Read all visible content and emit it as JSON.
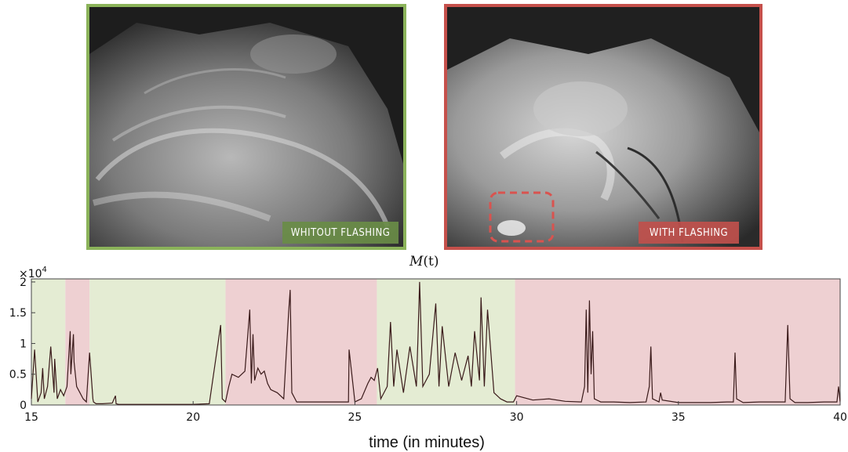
{
  "photos": {
    "left_caption": "WHITOUT FLASHING",
    "right_caption": "WITH FLASHING",
    "left_border_color": "#8bb35a",
    "right_border_color": "#c5504b"
  },
  "chart_data": {
    "type": "line",
    "title_symbol": "M",
    "title_arg": "(t)",
    "xlabel": "time (in minutes)",
    "exponent_label": "×10",
    "exponent_power": "4",
    "xlim": [
      15,
      40
    ],
    "ylim": [
      0,
      2.05
    ],
    "x_ticks": [
      15,
      20,
      25,
      30,
      35,
      40
    ],
    "x_tick_labels": [
      "15",
      "20",
      "25",
      "30",
      "35",
      "40"
    ],
    "y_ticks": [
      0,
      0.5,
      1,
      1.5,
      2
    ],
    "y_tick_labels": [
      "0",
      "0.5",
      "1",
      "1.5",
      "2"
    ],
    "y_units": "x10^4",
    "colors": {
      "without_flashing": "#e4ecd3",
      "with_flashing": "#eed0d2",
      "line": "#3a1a1a",
      "axis": "#444444"
    },
    "shaded_regions": [
      {
        "start": 15.0,
        "end": 16.05,
        "state": "without_flashing"
      },
      {
        "start": 16.05,
        "end": 16.8,
        "state": "with_flashing"
      },
      {
        "start": 16.8,
        "end": 21.0,
        "state": "without_flashing"
      },
      {
        "start": 21.0,
        "end": 25.68,
        "state": "with_flashing"
      },
      {
        "start": 25.68,
        "end": 29.95,
        "state": "without_flashing"
      },
      {
        "start": 29.95,
        "end": 40.0,
        "state": "with_flashing"
      }
    ],
    "series": [
      {
        "x": [
          15.0,
          15.1,
          15.2,
          15.3,
          15.35,
          15.4,
          15.5,
          15.6,
          15.7,
          15.72,
          15.8,
          15.9,
          16.0,
          16.1,
          16.2,
          16.22,
          16.3,
          16.32,
          16.4,
          16.5,
          16.6,
          16.7,
          16.8,
          16.9,
          16.92,
          17.0,
          17.2,
          17.5,
          17.6,
          17.62,
          17.7,
          18.0,
          18.5,
          19.0,
          19.5,
          20.0,
          20.5,
          20.85,
          20.9,
          21.0,
          21.1,
          21.2,
          21.4,
          21.6,
          21.75,
          21.8,
          21.85,
          21.9,
          22.0,
          22.1,
          22.2,
          22.3,
          22.4,
          22.6,
          22.8,
          22.95,
          23.0,
          23.05,
          23.2,
          23.5,
          24.0,
          24.5,
          24.8,
          24.82,
          25.0,
          25.2,
          25.4,
          25.5,
          25.6,
          25.7,
          25.8,
          26.0,
          26.1,
          26.2,
          26.3,
          26.5,
          26.7,
          26.9,
          26.95,
          27.0,
          27.1,
          27.3,
          27.5,
          27.6,
          27.7,
          27.9,
          28.1,
          28.3,
          28.5,
          28.6,
          28.7,
          28.85,
          28.9,
          29.0,
          29.1,
          29.3,
          29.5,
          29.7,
          29.9,
          30.0,
          30.5,
          31.0,
          31.5,
          32.0,
          32.1,
          32.15,
          32.2,
          32.25,
          32.3,
          32.35,
          32.4,
          32.6,
          33.0,
          33.5,
          34.0,
          34.1,
          34.15,
          34.2,
          34.4,
          34.45,
          34.5,
          35.0,
          35.5,
          36.0,
          36.5,
          36.7,
          36.75,
          36.8,
          37.0,
          37.5,
          38.0,
          38.3,
          38.38,
          38.45,
          38.6,
          39.0,
          39.5,
          39.9,
          39.95,
          40.0
        ],
        "values": [
          0.1,
          0.9,
          0.05,
          0.2,
          0.6,
          0.1,
          0.3,
          0.95,
          0.2,
          0.75,
          0.1,
          0.25,
          0.15,
          0.3,
          1.2,
          0.5,
          1.15,
          0.7,
          0.3,
          0.2,
          0.1,
          0.05,
          0.85,
          0.1,
          0.05,
          0.02,
          0.02,
          0.03,
          0.15,
          0.02,
          0.01,
          0.01,
          0.01,
          0.01,
          0.01,
          0.01,
          0.02,
          1.3,
          0.1,
          0.05,
          0.3,
          0.5,
          0.45,
          0.55,
          1.55,
          0.35,
          1.15,
          0.4,
          0.6,
          0.5,
          0.55,
          0.35,
          0.25,
          0.2,
          0.1,
          1.5,
          1.87,
          0.2,
          0.05,
          0.05,
          0.05,
          0.05,
          0.05,
          0.9,
          0.05,
          0.1,
          0.35,
          0.45,
          0.4,
          0.6,
          0.1,
          0.3,
          1.35,
          0.3,
          0.9,
          0.2,
          0.95,
          0.3,
          1.08,
          2.0,
          0.3,
          0.5,
          1.65,
          0.3,
          1.28,
          0.3,
          0.85,
          0.4,
          0.8,
          0.3,
          1.2,
          0.4,
          1.75,
          0.3,
          1.55,
          0.2,
          0.1,
          0.05,
          0.05,
          0.15,
          0.08,
          0.1,
          0.06,
          0.05,
          0.3,
          1.55,
          0.2,
          1.7,
          0.5,
          1.2,
          0.1,
          0.05,
          0.05,
          0.04,
          0.05,
          0.3,
          0.95,
          0.1,
          0.05,
          0.2,
          0.08,
          0.04,
          0.04,
          0.04,
          0.05,
          0.05,
          0.85,
          0.1,
          0.04,
          0.05,
          0.05,
          0.05,
          1.3,
          0.1,
          0.04,
          0.04,
          0.05,
          0.05,
          0.3,
          0.05
        ]
      }
    ]
  }
}
